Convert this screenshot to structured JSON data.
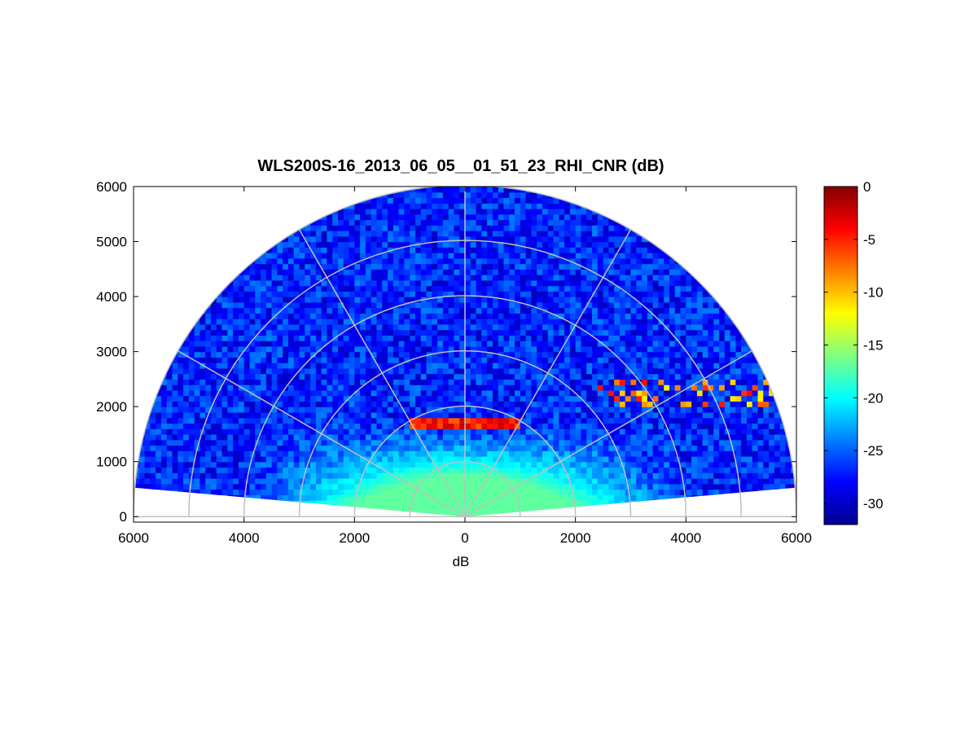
{
  "chart_data": {
    "type": "heatmap",
    "projection": "polar-rhi-half-disk",
    "title": "WLS200S-16_2013_06_05__01_51_23_RHI_CNR (dB)",
    "xlabel": "dB",
    "ylabel": "",
    "xlim": [
      -6000,
      6000
    ],
    "ylim": [
      -100,
      6000
    ],
    "x_ticks": [
      -6000,
      -4000,
      -2000,
      0,
      2000,
      4000,
      6000
    ],
    "x_tick_labels": [
      "6000",
      "4000",
      "2000",
      "0",
      "2000",
      "4000",
      "6000"
    ],
    "y_ticks": [
      0,
      1000,
      2000,
      3000,
      4000,
      5000,
      6000
    ],
    "y_tick_labels": [
      "0",
      "1000",
      "2000",
      "3000",
      "4000",
      "5000",
      "6000"
    ],
    "max_range": 6000,
    "range_rings": [
      1000,
      2000,
      3000,
      4000,
      5000,
      6000
    ],
    "spokes_deg": [
      0,
      30,
      60,
      90,
      120,
      150,
      180
    ],
    "elevation_span_deg": [
      5,
      175
    ],
    "grid": true,
    "colorbar": {
      "min": -32,
      "max": 0,
      "ticks": [
        0,
        -5,
        -10,
        -15,
        -20,
        -25,
        -30
      ],
      "tick_labels": [
        "0",
        "-5",
        "-10",
        "-15",
        "-20",
        "-25",
        "-30"
      ],
      "colormap": "jet"
    },
    "features": [
      {
        "name": "background",
        "range_m": [
          0,
          6000
        ],
        "cnr_db": -27
      },
      {
        "name": "boundary-layer",
        "range_m": [
          0,
          1700
        ],
        "cnr_db": -17
      },
      {
        "name": "aerosol-layer-top",
        "height_m": 1700,
        "cnr_db": -2
      },
      {
        "name": "elevated-patches-right",
        "height_m": [
          2000,
          2500
        ],
        "cnr_db": -8
      }
    ]
  }
}
